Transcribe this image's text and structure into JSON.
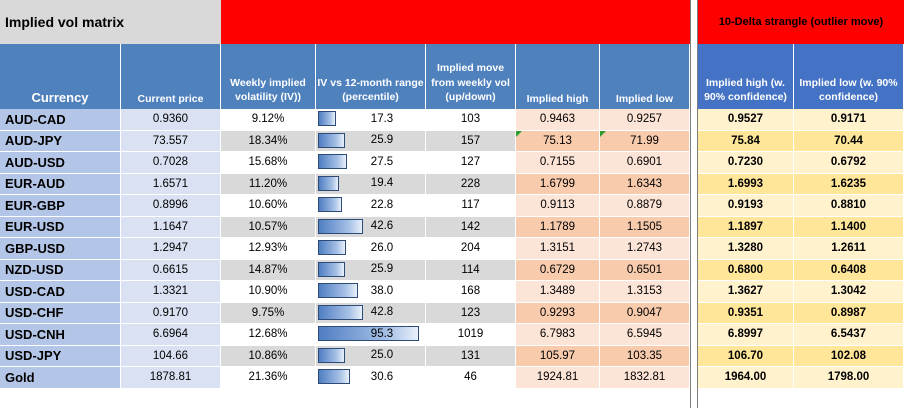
{
  "title": "Implied vol matrix",
  "strangle_title": "10-Delta strangle (outlier move)",
  "headers": {
    "currency": "Currency",
    "current_price": "Current price",
    "weekly_iv": "Weekly implied volatility (IV))",
    "iv_vs_range": "IV vs  12-month range (percentile)",
    "implied_move": "Implied move from weekly vol (up/down)",
    "implied_high": "Implied high",
    "implied_low": "Implied low",
    "strangle_high": "Implied high (w. 90% confidence)",
    "strangle_low": "Implied low (w. 90% confidence)"
  },
  "colors": {
    "red_banner": "#ff0000",
    "title_bg": "#d9d9d9",
    "header_blue": "#4f81bd",
    "currency_col": "#b4c6e7",
    "price_col": "#d9e1f2",
    "odd_row": "#ffffff",
    "even_row": "#d9d9d9",
    "implied_odd": "#fce4d6",
    "implied_even": "#f8cbad",
    "strangle_odd": "#fff2cc",
    "strangle_even": "#ffe699",
    "strangle_header": "#4472c4"
  },
  "chart_data": {
    "type": "table",
    "title": "Implied vol matrix",
    "columns": [
      "Currency",
      "Current price",
      "Weekly implied volatility (IV))",
      "IV vs  12-month range (percentile)",
      "Implied move from weekly vol (up/down)",
      "Implied high",
      "Implied low",
      "Implied high (w. 90% confidence)",
      "Implied low (w. 90% confidence)"
    ],
    "rows": [
      {
        "currency": "AUD-CAD",
        "price": "0.9360",
        "iv": "9.12%",
        "pct": 17.3,
        "pct_label": "17.3",
        "move": "103",
        "high": "0.9463",
        "low": "0.9257",
        "s_high": "0.9527",
        "s_low": "0.9171"
      },
      {
        "currency": "AUD-JPY",
        "price": "73.557",
        "iv": "18.34%",
        "pct": 25.9,
        "pct_label": "25.9",
        "move": "157",
        "high": "75.13",
        "low": "71.99",
        "s_high": "75.84",
        "s_low": "70.44"
      },
      {
        "currency": "AUD-USD",
        "price": "0.7028",
        "iv": "15.68%",
        "pct": 27.5,
        "pct_label": "27.5",
        "move": "127",
        "high": "0.7155",
        "low": "0.6901",
        "s_high": "0.7230",
        "s_low": "0.6792"
      },
      {
        "currency": "EUR-AUD",
        "price": "1.6571",
        "iv": "11.20%",
        "pct": 19.4,
        "pct_label": "19.4",
        "move": "228",
        "high": "1.6799",
        "low": "1.6343",
        "s_high": "1.6993",
        "s_low": "1.6235"
      },
      {
        "currency": "EUR-GBP",
        "price": "0.8996",
        "iv": "10.60%",
        "pct": 22.8,
        "pct_label": "22.8",
        "move": "117",
        "high": "0.9113",
        "low": "0.8879",
        "s_high": "0.9193",
        "s_low": "0.8810"
      },
      {
        "currency": "EUR-USD",
        "price": "1.1647",
        "iv": "10.57%",
        "pct": 42.6,
        "pct_label": "42.6",
        "move": "142",
        "high": "1.1789",
        "low": "1.1505",
        "s_high": "1.1897",
        "s_low": "1.1400"
      },
      {
        "currency": "GBP-USD",
        "price": "1.2947",
        "iv": "12.93%",
        "pct": 26.0,
        "pct_label": "26.0",
        "move": "204",
        "high": "1.3151",
        "low": "1.2743",
        "s_high": "1.3280",
        "s_low": "1.2611"
      },
      {
        "currency": "NZD-USD",
        "price": "0.6615",
        "iv": "14.87%",
        "pct": 25.9,
        "pct_label": "25.9",
        "move": "114",
        "high": "0.6729",
        "low": "0.6501",
        "s_high": "0.6800",
        "s_low": "0.6408"
      },
      {
        "currency": "USD-CAD",
        "price": "1.3321",
        "iv": "10.90%",
        "pct": 38.0,
        "pct_label": "38.0",
        "move": "168",
        "high": "1.3489",
        "low": "1.3153",
        "s_high": "1.3627",
        "s_low": "1.3042"
      },
      {
        "currency": "USD-CHF",
        "price": "0.9170",
        "iv": "9.75%",
        "pct": 42.8,
        "pct_label": "42.8",
        "move": "123",
        "high": "0.9293",
        "low": "0.9047",
        "s_high": "0.9351",
        "s_low": "0.8987"
      },
      {
        "currency": "USD-CNH",
        "price": "6.6964",
        "iv": "12.68%",
        "pct": 95.3,
        "pct_label": "95.3",
        "move": "1019",
        "high": "6.7983",
        "low": "6.5945",
        "s_high": "6.8997",
        "s_low": "6.5437"
      },
      {
        "currency": "USD-JPY",
        "price": "104.66",
        "iv": "10.86%",
        "pct": 25.0,
        "pct_label": "25.0",
        "move": "131",
        "high": "105.97",
        "low": "103.35",
        "s_high": "106.70",
        "s_low": "102.08"
      },
      {
        "currency": "Gold",
        "price": "1878.81",
        "iv": "21.36%",
        "pct": 30.6,
        "pct_label": "30.6",
        "move": "46",
        "high": "1924.81",
        "low": "1832.81",
        "s_high": "1964.00",
        "s_low": "1798.00"
      }
    ]
  }
}
